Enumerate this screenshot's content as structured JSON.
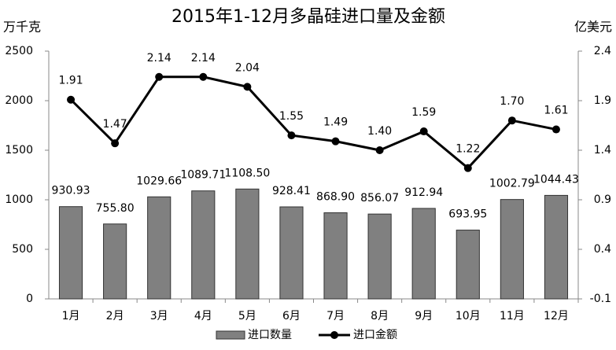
{
  "chart_data": {
    "type": "bar",
    "title": "2015年1-12月多晶硅进口量及金额",
    "y_label": "万千克",
    "y2_label": "亿美元",
    "categories": [
      "1月",
      "2月",
      "3月",
      "4月",
      "5月",
      "6月",
      "7月",
      "8月",
      "9月",
      "10月",
      "11月",
      "12月"
    ],
    "series": [
      {
        "name": "进口数量",
        "type": "bar",
        "color": "#808080",
        "values": [
          930.93,
          755.8,
          1029.66,
          1089.71,
          1108.5,
          928.41,
          868.9,
          856.07,
          912.94,
          693.95,
          1002.79,
          1044.43
        ],
        "value_labels": [
          "930.93",
          "755.80",
          "1029.66",
          "1089.71",
          "1108.50",
          "928.41",
          "868.90",
          "856.07",
          "912.94",
          "693.95",
          "1002.79",
          "1044.43"
        ]
      },
      {
        "name": "进口金额",
        "type": "line",
        "axis": "y2",
        "color": "#000000",
        "values": [
          1.91,
          1.47,
          2.14,
          2.14,
          2.04,
          1.55,
          1.49,
          1.4,
          1.59,
          1.22,
          1.7,
          1.61
        ],
        "value_labels": [
          "1.91",
          "1.47",
          "2.14",
          "2.14",
          "2.04",
          "1.55",
          "1.49",
          "1.40",
          "1.59",
          "1.22",
          "1.70",
          "1.61"
        ]
      }
    ],
    "ylim": [
      0,
      2500
    ],
    "yticks": [
      0,
      500,
      1000,
      1500,
      2000,
      2500
    ],
    "y2lim": [
      -0.1,
      2.4
    ],
    "y2ticks": [
      -0.1,
      0.4,
      0.9,
      1.4,
      1.9,
      2.4
    ],
    "grid": false,
    "legend": "bottom"
  }
}
